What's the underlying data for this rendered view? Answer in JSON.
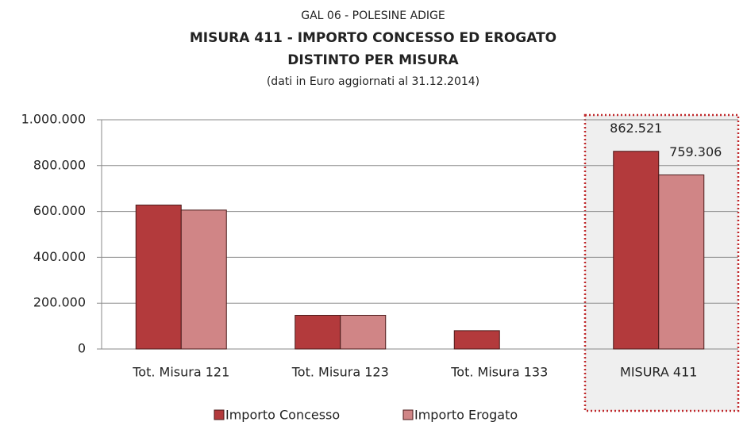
{
  "chart_data": {
    "type": "bar",
    "title_lines": [
      "GAL 06  - POLESINE ADIGE",
      "MISURA 411 - IMPORTO CONCESSO ED EROGATO",
      "DISTINTO PER MISURA"
    ],
    "subtitle": "(dati in Euro aggiornati al 31.12.2014)",
    "categories": [
      "Tot. Misura 121",
      "Tot. Misura 123",
      "Tot. Misura 133",
      "MISURA 411"
    ],
    "series": [
      {
        "name": "Importo Concesso",
        "color": "#b33a3c",
        "values": [
          628000,
          147000,
          80000,
          862521
        ],
        "value_labels": [
          null,
          null,
          null,
          "862.521"
        ]
      },
      {
        "name": "Importo Erogato",
        "color": "#d08586",
        "values": [
          606000,
          147000,
          null,
          759306
        ],
        "value_labels": [
          null,
          null,
          null,
          "759.306"
        ]
      }
    ],
    "ylim": [
      0,
      1000000
    ],
    "yticks": [
      0,
      {
        "value": 200000,
        "label": "200.000"
      },
      {
        "value": 400000,
        "label": "400.000"
      },
      {
        "value": 600000,
        "label": "600.000"
      },
      {
        "value": 800000,
        "label": "800.000"
      },
      {
        "value": 1000000,
        "label": "1.000.000"
      }
    ],
    "grid": true,
    "legend": "bottom"
  }
}
